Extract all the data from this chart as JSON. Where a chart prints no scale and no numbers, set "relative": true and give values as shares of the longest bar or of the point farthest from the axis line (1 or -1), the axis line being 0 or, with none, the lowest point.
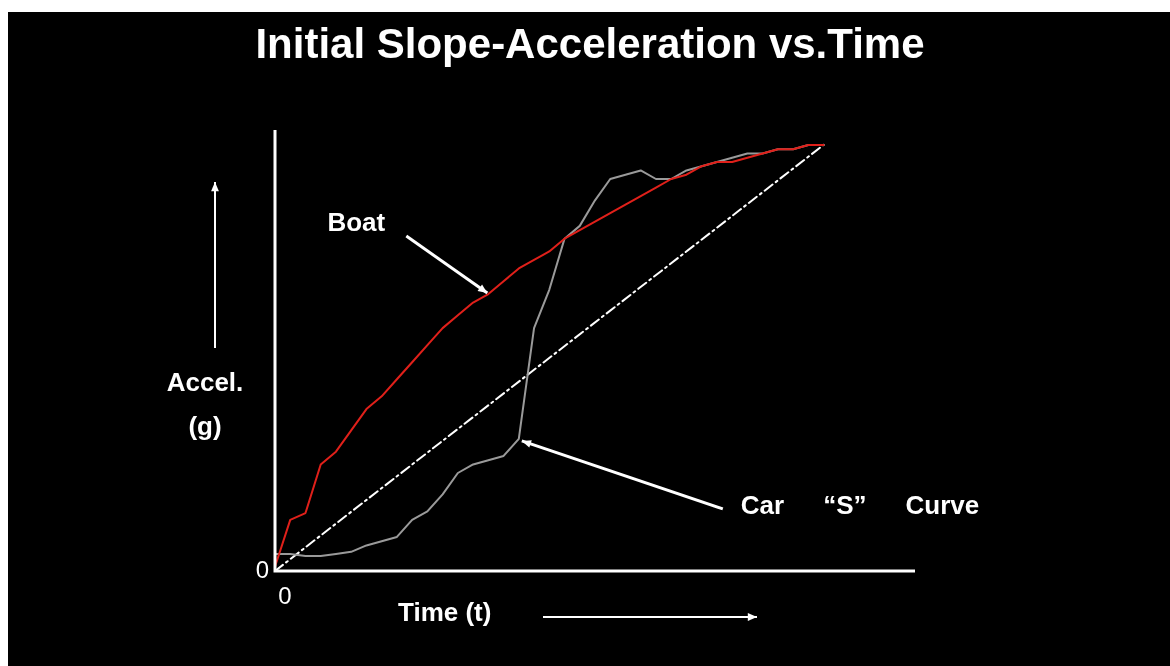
{
  "chart_data": {
    "type": "line",
    "title": "Initial Slope-Acceleration vs.Time",
    "xlabel": "Time (t)",
    "ylabel": "Accel. (g)",
    "relative": true,
    "legend": false,
    "marker": "none",
    "categories": [
      null,
      null,
      null,
      null,
      null,
      null,
      null,
      null,
      null,
      null,
      null,
      null,
      null,
      null,
      null,
      null,
      null,
      null,
      null,
      null,
      null,
      null,
      null,
      null,
      null,
      null,
      null,
      null,
      null,
      null,
      null,
      null,
      null,
      null,
      null,
      null,
      null,
      null,
      null,
      null,
      null,
      null,
      null
    ],
    "series": [
      {
        "color": "#e0201a",
        "values": [
          0.01,
          0.12,
          0.136,
          0.25,
          0.28,
          0.33,
          0.38,
          0.41,
          0.45,
          0.49,
          0.53,
          0.57,
          0.6,
          0.63,
          0.65,
          0.68,
          0.71,
          0.73,
          0.75,
          0.78,
          0.8,
          0.82,
          0.84,
          0.86,
          0.88,
          0.9,
          0.92,
          0.93,
          0.95,
          0.96,
          0.96,
          0.97,
          0.98,
          0.99,
          0.99,
          1.0,
          1.0,
          null,
          null,
          null,
          null,
          null,
          null
        ]
      },
      {
        "color": "#9a9a9a",
        "values": [
          0.04,
          0.04,
          0.035,
          0.035,
          0.04,
          0.045,
          0.06,
          0.07,
          0.08,
          0.12,
          0.14,
          0.18,
          0.23,
          0.25,
          0.26,
          0.27,
          0.31,
          0.57,
          0.66,
          0.78,
          0.81,
          0.87,
          0.92,
          0.93,
          0.94,
          0.92,
          0.92,
          0.94,
          0.95,
          0.96,
          0.97,
          0.98,
          0.98,
          0.99,
          0.99,
          1.0,
          1.0,
          null,
          null,
          null,
          null,
          null,
          null
        ]
      },
      {
        "color": "#ffffff",
        "line_style": "dashed",
        "values": [
          0,
          null,
          null,
          null,
          null,
          null,
          null,
          null,
          null,
          null,
          null,
          null,
          null,
          null,
          null,
          null,
          null,
          null,
          null,
          null,
          null,
          null,
          null,
          null,
          null,
          null,
          null,
          null,
          null,
          null,
          null,
          null,
          null,
          null,
          null,
          null,
          1,
          null,
          null,
          null,
          null,
          null,
          null
        ]
      }
    ],
    "annotations": [
      "0",
      "0",
      "Boat",
      "Car    “S” Curve"
    ]
  }
}
